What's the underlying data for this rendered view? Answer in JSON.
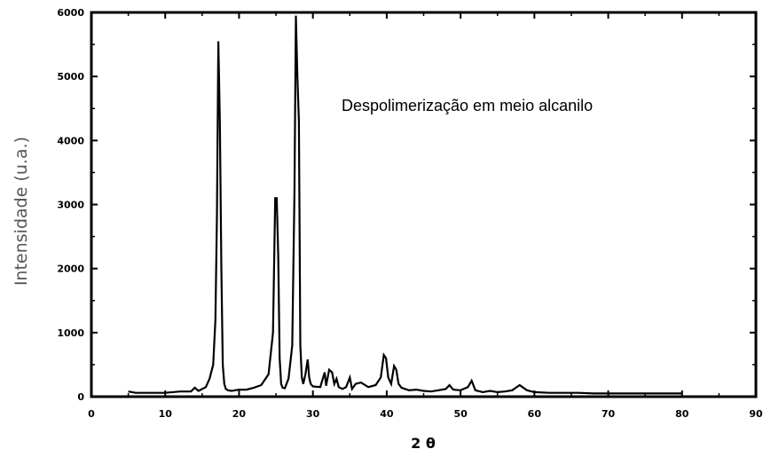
{
  "chart_data": {
    "type": "line",
    "title": "",
    "xlabel": "2 θ",
    "ylabel": "Intensidade (u.a.)",
    "annotation": "Despolimerização em meio alcanilo",
    "xlim": [
      0,
      90
    ],
    "ylim": [
      0,
      6000
    ],
    "x_ticks": [
      "0",
      "10",
      "20",
      "30",
      "40",
      "50",
      "60",
      "70",
      "80",
      "90"
    ],
    "y_ticks": [
      "0",
      "1000",
      "2000",
      "3000",
      "4000",
      "5000",
      "6000"
    ],
    "grid": false,
    "series": [
      {
        "color": "#000000",
        "x": [
          5,
          6,
          8,
          10,
          12,
          13.5,
          14,
          14.5,
          15.5,
          16,
          16.5,
          16.8,
          17.0,
          17.2,
          17.4,
          17.6,
          17.8,
          18.0,
          18.2,
          18.5,
          19,
          20,
          21,
          22,
          23,
          24,
          24.6,
          24.9,
          25.1,
          25.3,
          25.5,
          25.7,
          25.9,
          26.2,
          26.7,
          27.2,
          27.5,
          27.7,
          27.9,
          28.1,
          28.3,
          28.5,
          28.7,
          29.0,
          29.3,
          29.5,
          29.7,
          30.0,
          31.0,
          31.6,
          31.8,
          32.2,
          32.6,
          32.9,
          33.2,
          33.5,
          34,
          34.5,
          35.0,
          35.3,
          35.8,
          36.5,
          37.5,
          38.5,
          39.2,
          39.6,
          39.9,
          40.2,
          40.6,
          41.0,
          41.3,
          41.6,
          42.0,
          43,
          44,
          45,
          46,
          47,
          48,
          48.5,
          49,
          50,
          51,
          51.5,
          52,
          53,
          54,
          55,
          56,
          57,
          57.5,
          58,
          59,
          60,
          62,
          64,
          66,
          68,
          70,
          72,
          74,
          76,
          78,
          80
        ],
        "y": [
          80,
          60,
          60,
          60,
          80,
          80,
          140,
          90,
          150,
          280,
          500,
          1200,
          2800,
          5550,
          4300,
          2000,
          500,
          200,
          120,
          100,
          90,
          110,
          110,
          140,
          180,
          350,
          1000,
          3100,
          3100,
          2200,
          600,
          200,
          140,
          130,
          280,
          800,
          3200,
          5950,
          5000,
          4300,
          800,
          300,
          200,
          350,
          580,
          300,
          200,
          160,
          150,
          380,
          170,
          420,
          380,
          200,
          280,
          150,
          120,
          150,
          300,
          120,
          200,
          220,
          150,
          180,
          300,
          650,
          600,
          300,
          200,
          480,
          420,
          200,
          140,
          100,
          110,
          90,
          80,
          100,
          120,
          180,
          110,
          100,
          150,
          250,
          100,
          70,
          90,
          70,
          80,
          100,
          140,
          180,
          100,
          70,
          60,
          60,
          60,
          50,
          50,
          50,
          50,
          50,
          50,
          50
        ]
      }
    ]
  }
}
